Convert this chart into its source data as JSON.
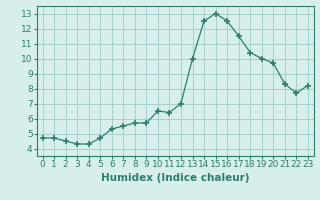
{
  "x": [
    0,
    1,
    2,
    3,
    4,
    5,
    6,
    7,
    8,
    9,
    10,
    11,
    12,
    13,
    14,
    15,
    16,
    17,
    18,
    19,
    20,
    21,
    22,
    23
  ],
  "y": [
    4.7,
    4.7,
    4.5,
    4.3,
    4.3,
    4.7,
    5.3,
    5.5,
    5.7,
    5.7,
    6.5,
    6.4,
    7.0,
    10.0,
    12.5,
    13.0,
    12.5,
    11.5,
    10.4,
    10.0,
    9.7,
    8.3,
    7.7,
    8.2
  ],
  "xlabel": "Humidex (Indice chaleur)",
  "ylim": [
    3.5,
    13.5
  ],
  "xlim": [
    -0.5,
    23.5
  ],
  "yticks": [
    4,
    5,
    6,
    7,
    8,
    9,
    10,
    11,
    12,
    13
  ],
  "xticks": [
    0,
    1,
    2,
    3,
    4,
    5,
    6,
    7,
    8,
    9,
    10,
    11,
    12,
    13,
    14,
    15,
    16,
    17,
    18,
    19,
    20,
    21,
    22,
    23
  ],
  "line_color": "#2e7d6e",
  "marker_color": "#2e7d6e",
  "bg_color": "#d6eeec",
  "grid_color": "#a8cece",
  "xlabel_fontsize": 7.5,
  "tick_fontsize": 6.5
}
